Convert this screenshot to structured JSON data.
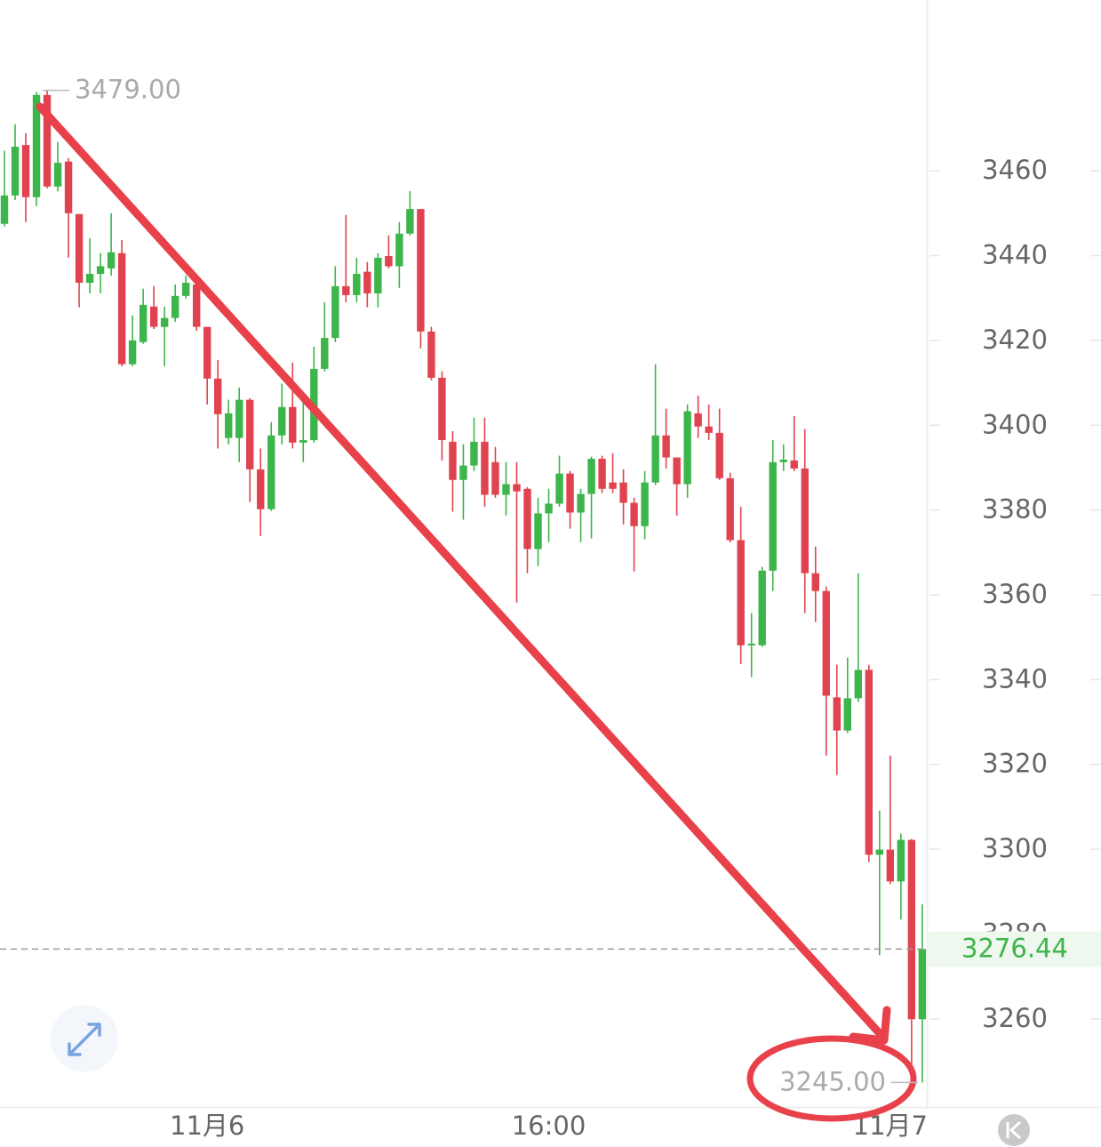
{
  "chart_data": {
    "type": "candlestick",
    "categories": [
      null,
      null,
      null,
      null,
      null,
      null,
      null,
      null,
      null,
      null,
      null,
      null,
      null,
      null,
      null,
      null,
      null,
      null,
      null,
      "11月6",
      null,
      null,
      null,
      null,
      null,
      null,
      null,
      null,
      null,
      null,
      null,
      null,
      null,
      null,
      null,
      null,
      null,
      null,
      null,
      null,
      null,
      null,
      null,
      null,
      null,
      null,
      null,
      null,
      null,
      null,
      null,
      "16:00",
      null,
      null,
      null,
      null,
      null,
      null,
      null,
      null,
      null,
      null,
      null,
      null,
      null,
      null,
      null,
      null,
      null,
      null,
      null,
      null,
      null,
      null,
      null,
      null,
      null,
      null,
      null,
      null,
      null,
      null,
      null,
      "11月7",
      null,
      null,
      null
    ],
    "open": [
      3447.5,
      3454.2,
      3466.1,
      3453.8,
      3477.9,
      3456.3,
      3462.2,
      3449.8,
      3433.6,
      3435.7,
      3437.0,
      3440.6,
      3414.4,
      3419.6,
      3428.0,
      3423.2,
      3425.3,
      3430.5,
      3433.2,
      3423.2,
      3411.0,
      3397.0,
      3397.0,
      3406.0,
      3389.6,
      3380.2,
      3397.6,
      3404.3,
      3395.9,
      3396.5,
      3413.3,
      3420.6,
      3432.8,
      3430.7,
      3436.2,
      3431.1,
      3439.9,
      3437.5,
      3445.2,
      3451.0,
      3422.1,
      3411.2,
      3396.1,
      3387.1,
      3390.5,
      3396.1,
      3391.3,
      3383.6,
      3386.1,
      3385.0,
      3370.8,
      3379.2,
      3381.5,
      3388.6,
      3379.4,
      3383.8,
      3392.1,
      3386.5,
      3386.5,
      3381.7,
      3376.2,
      3386.5,
      3397.6,
      3392.4,
      3386.1,
      3402.8,
      3399.7,
      3398.2,
      3387.5,
      3372.9,
      3348.1,
      3348.1,
      3365.7,
      3391.3,
      3391.7,
      3389.8,
      3365.1,
      3360.9,
      3335.8,
      3328.0,
      3335.6,
      3342.3,
      3298.7,
      3299.9,
      3292.4,
      3302.2,
      3259.9
    ],
    "high": [
      3464.7,
      3471.0,
      3468.9,
      3478.6,
      3479.0,
      3466.8,
      3463.0,
      3449.8,
      3444.1,
      3440.6,
      3450.0,
      3443.7,
      3425.9,
      3432.2,
      3432.8,
      3428.0,
      3433.2,
      3435.3,
      3434.3,
      3423.2,
      3415.4,
      3406.0,
      3408.9,
      3406.4,
      3394.5,
      3400.7,
      3409.8,
      3414.8,
      3406.0,
      3418.5,
      3429.0,
      3437.5,
      3449.6,
      3439.5,
      3438.5,
      3440.6,
      3444.8,
      3447.9,
      3455.2,
      3451.0,
      3423.2,
      3412.7,
      3398.6,
      3395.5,
      3401.8,
      3401.8,
      3394.9,
      3391.3,
      3391.3,
      3385.4,
      3382.9,
      3385.0,
      3392.8,
      3389.2,
      3385.0,
      3392.6,
      3392.8,
      3393.4,
      3389.6,
      3382.9,
      3389.2,
      3414.4,
      3403.9,
      3392.4,
      3404.9,
      3407.0,
      3404.9,
      3403.9,
      3388.8,
      3380.8,
      3355.7,
      3366.6,
      3396.5,
      3395.5,
      3402.2,
      3399.1,
      3371.4,
      3362.0,
      3343.5,
      3345.2,
      3365.1,
      3343.5,
      3309.1,
      3322.1,
      3303.7,
      3302.4,
      3287.0
    ],
    "low": [
      3446.9,
      3453.1,
      3447.9,
      3451.7,
      3455.9,
      3455.2,
      3439.5,
      3427.8,
      3431.1,
      3431.1,
      3435.3,
      3413.9,
      3413.9,
      3419.2,
      3422.7,
      3413.9,
      3424.4,
      3429.9,
      3422.3,
      3404.9,
      3394.5,
      3395.5,
      3391.3,
      3381.9,
      3373.9,
      3379.8,
      3395.5,
      3394.5,
      3391.3,
      3395.9,
      3412.7,
      3419.6,
      3429.0,
      3429.0,
      3427.8,
      3427.8,
      3437.0,
      3432.4,
      3444.8,
      3418.1,
      3410.6,
      3391.7,
      3379.6,
      3377.7,
      3389.2,
      3380.8,
      3382.9,
      3378.7,
      3358.2,
      3365.1,
      3366.8,
      3372.4,
      3380.8,
      3375.6,
      3372.4,
      3373.3,
      3384.0,
      3384.0,
      3376.6,
      3365.5,
      3373.1,
      3385.9,
      3389.8,
      3378.7,
      3382.9,
      3397.0,
      3396.5,
      3387.1,
      3372.4,
      3343.7,
      3340.6,
      3347.7,
      3360.9,
      3389.2,
      3389.2,
      3355.7,
      3353.6,
      3322.1,
      3317.5,
      3327.4,
      3334.7,
      3297.0,
      3275.0,
      3291.8,
      3283.4,
      3248.8,
      3245.0
    ],
    "close": [
      3454.2,
      3465.7,
      3453.8,
      3477.9,
      3456.3,
      3461.9,
      3450.0,
      3433.6,
      3435.7,
      3437.5,
      3440.8,
      3414.4,
      3420.0,
      3428.4,
      3423.2,
      3425.3,
      3430.5,
      3433.6,
      3423.2,
      3411.0,
      3402.6,
      3402.8,
      3406.0,
      3389.6,
      3380.2,
      3397.6,
      3404.3,
      3395.9,
      3396.5,
      3413.3,
      3420.6,
      3432.8,
      3430.7,
      3435.7,
      3431.1,
      3439.5,
      3437.5,
      3445.2,
      3451.0,
      3422.1,
      3411.2,
      3396.5,
      3387.1,
      3390.5,
      3396.1,
      3383.6,
      3383.6,
      3386.1,
      3384.4,
      3370.8,
      3379.2,
      3381.5,
      3388.6,
      3379.4,
      3383.8,
      3392.1,
      3385.0,
      3385.0,
      3381.7,
      3376.2,
      3386.5,
      3397.6,
      3392.4,
      3386.1,
      3403.3,
      3399.7,
      3398.2,
      3387.5,
      3372.9,
      3348.1,
      3348.5,
      3365.7,
      3391.3,
      3391.9,
      3389.8,
      3365.1,
      3360.9,
      3336.2,
      3328.0,
      3335.6,
      3342.3,
      3298.7,
      3299.9,
      3292.4,
      3302.2,
      3259.9,
      3276.44
    ],
    "up_color": "#3cb54a",
    "down_color": "#e0434f",
    "ylim": [
      3239.2,
      3500.3
    ],
    "yticks": [
      3260,
      3280,
      3300,
      3320,
      3340,
      3360,
      3380,
      3400,
      3420,
      3440,
      3460
    ],
    "last_price": 3276.44,
    "high_marker": {
      "value": 3479,
      "label": "3479.00"
    },
    "low_marker": {
      "value": 3245,
      "label": "3245.00"
    }
  }
}
